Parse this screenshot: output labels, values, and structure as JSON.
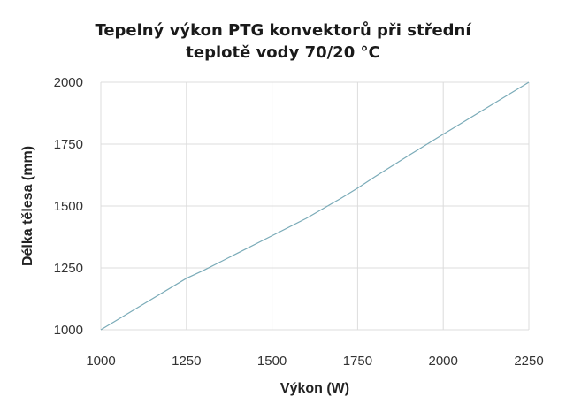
{
  "chart_data": {
    "type": "line",
    "title_lines": [
      "Tepelný výkon PTG konvektorů při střední",
      "teplotě vody 70/20 °C"
    ],
    "xlabel": "Výkon (W)",
    "ylabel": "Délka tělesa (mm)",
    "xlim": [
      1000,
      2250
    ],
    "ylim": [
      1000,
      2000
    ],
    "xticks": [
      1000,
      1250,
      1500,
      1750,
      2000,
      2250
    ],
    "yticks": [
      1000,
      1250,
      1500,
      1750,
      2000
    ],
    "grid": true,
    "line_color": "#7aabb8",
    "series": [
      {
        "x": [
          1000,
          1125,
          1250,
          1300,
          1400,
          1500,
          1600,
          1700,
          1750,
          1800,
          1900,
          2000,
          2125,
          2250
        ],
        "y": [
          1000,
          1104,
          1208,
          1240,
          1310,
          1380,
          1450,
          1530,
          1572,
          1618,
          1705,
          1790,
          1895,
          2000
        ]
      }
    ]
  }
}
